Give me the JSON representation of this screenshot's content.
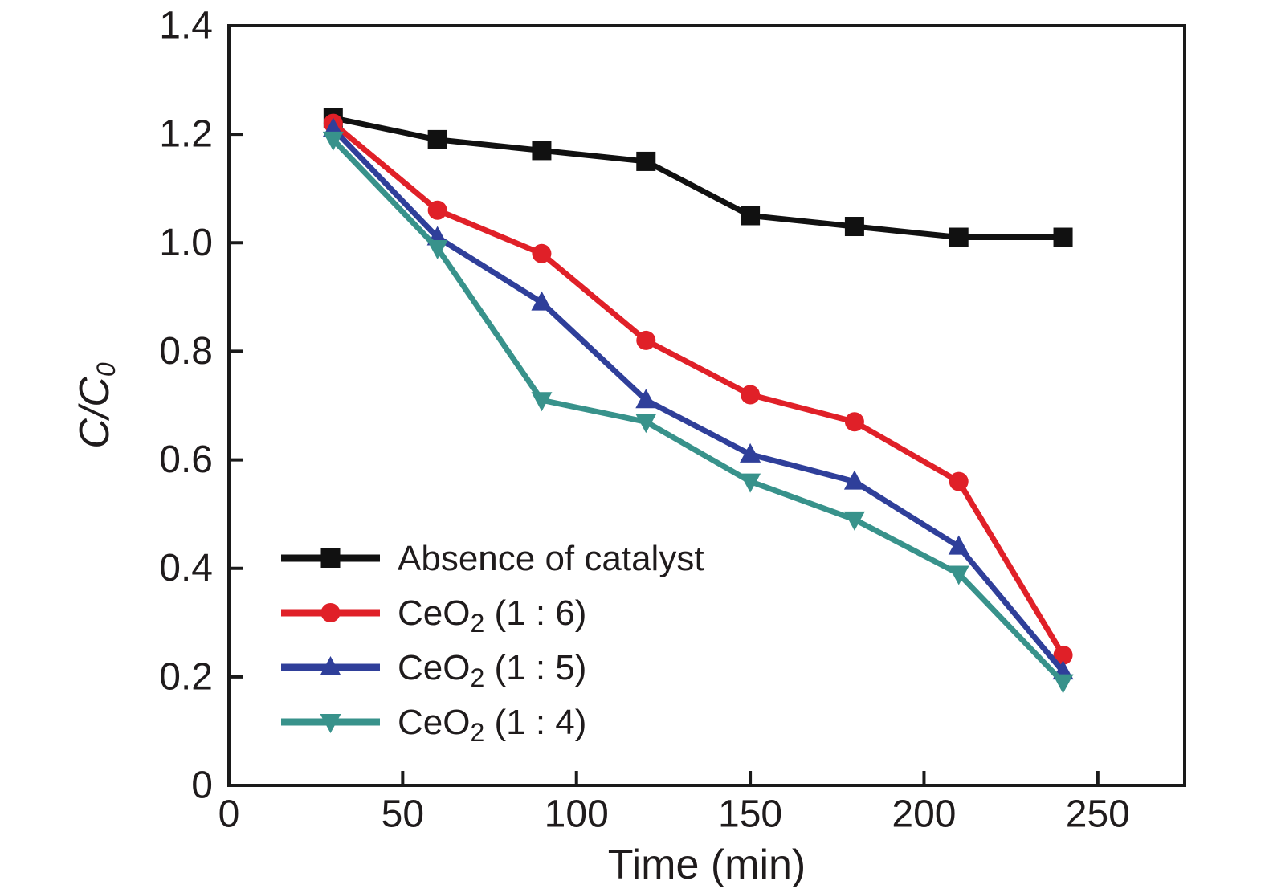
{
  "figure": {
    "background": "#ffffff",
    "frame_color": "#1a1a1a",
    "text_color": "#1f1b1c"
  },
  "chart_data": {
    "type": "line",
    "title": "",
    "xlabel": "Time (min)",
    "ylabel": {
      "pre": "C/C",
      "sub": "0"
    },
    "xlim": [
      0,
      275
    ],
    "ylim": [
      0,
      1.4
    ],
    "x_ticks": [
      0,
      50,
      100,
      150,
      200,
      250
    ],
    "y_ticks": [
      "0",
      "0.2",
      "0.4",
      "0.6",
      "0.8",
      "1.0",
      "1.2",
      "1.4"
    ],
    "grid": false,
    "legend_position": "lower-left",
    "x": [
      30,
      60,
      90,
      120,
      150,
      180,
      210,
      240
    ],
    "series": [
      {
        "name": "Absence of catalyst",
        "label": {
          "pre": "Absence of catalyst",
          "sub": "",
          "post": ""
        },
        "color": "#111111",
        "marker": "square",
        "values": [
          1.23,
          1.19,
          1.17,
          1.15,
          1.05,
          1.03,
          1.01,
          1.01
        ]
      },
      {
        "name": "CeO2 (1 : 6)",
        "label": {
          "pre": "CeO",
          "sub": "2",
          "post": " (1 : 6)"
        },
        "color": "#e02028",
        "marker": "circle",
        "values": [
          1.22,
          1.06,
          0.98,
          0.82,
          0.72,
          0.67,
          0.56,
          0.24
        ]
      },
      {
        "name": "CeO2 (1 : 5)",
        "label": {
          "pre": "CeO",
          "sub": "2",
          "post": " (1 : 5)"
        },
        "color": "#2f3f9a",
        "marker": "triangle-up",
        "values": [
          1.21,
          1.01,
          0.89,
          0.71,
          0.61,
          0.56,
          0.44,
          0.21
        ]
      },
      {
        "name": "CeO2 (1 : 4)",
        "label": {
          "pre": "CeO",
          "sub": "2",
          "post": " (1 : 4)"
        },
        "color": "#38928b",
        "marker": "triangle-down",
        "values": [
          1.19,
          0.99,
          0.71,
          0.67,
          0.56,
          0.49,
          0.39,
          0.19
        ]
      }
    ]
  }
}
